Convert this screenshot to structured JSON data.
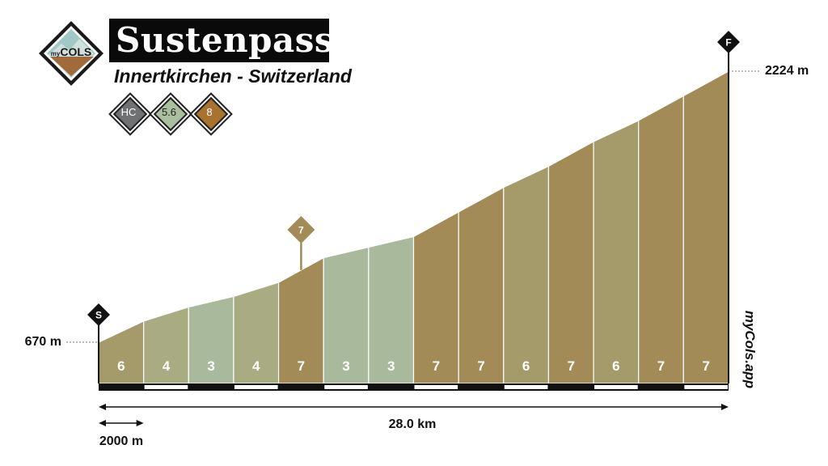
{
  "logo": {
    "prefix": "my",
    "text": "COLS"
  },
  "header": {
    "title": "Sustenpass",
    "subtitle": "Innertkirchen - Switzerland"
  },
  "badges": [
    {
      "text": "HC",
      "color": "#6f7173",
      "text_color": "#ffffff"
    },
    {
      "text": "5.6",
      "color": "#a9bf9e",
      "text_color": "#222222"
    },
    {
      "text": "8",
      "color": "#a8732e",
      "text_color": "#ffffff"
    }
  ],
  "colors": {
    "grade_3": "#a9b99b",
    "grade_4": "#a9ab82",
    "grade_6": "#a59a69",
    "grade_7": "#a38b58",
    "marker": "#111111",
    "max_marker": "#a38b58"
  },
  "chart_data": {
    "type": "area",
    "total_distance_km": 28.0,
    "start_elevation_m": 670,
    "end_elevation_m": 2224,
    "segment_km": 2.0,
    "gradients": [
      6,
      4,
      3,
      4,
      7,
      3,
      3,
      7,
      7,
      6,
      7,
      6,
      7,
      7
    ],
    "max_gradient_marker": {
      "segment": 5,
      "label": "7"
    },
    "start_label": "670 m",
    "end_label": "2224 m",
    "start_marker": "S",
    "finish_marker": "F",
    "distance_label": "28.0 km",
    "scale_label": "2000 m",
    "watermark": "myCols.app"
  }
}
